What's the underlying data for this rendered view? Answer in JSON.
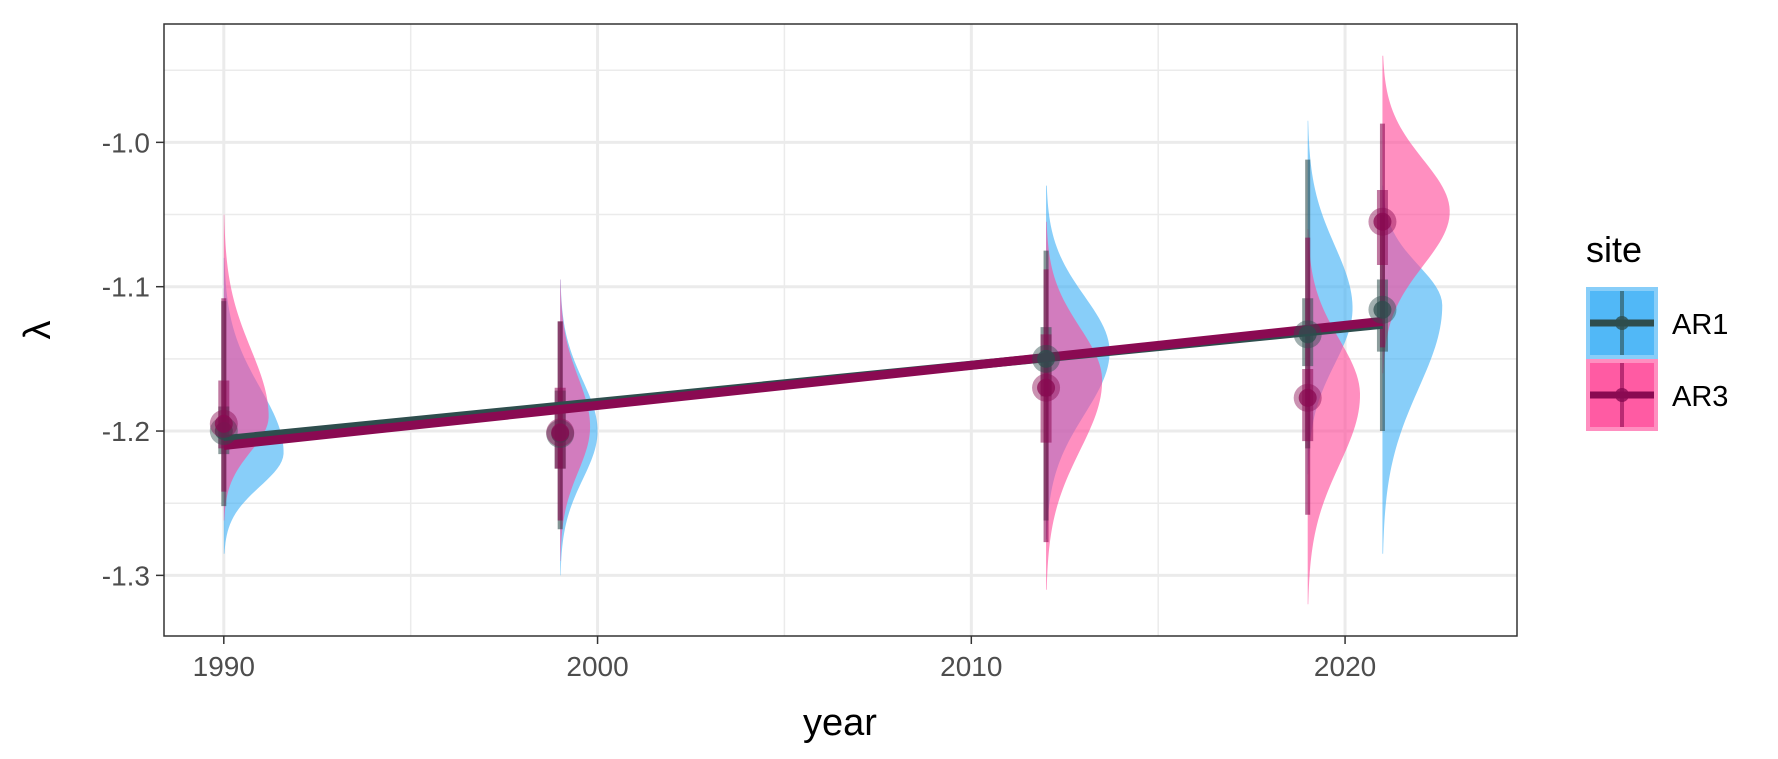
{
  "chart_data": {
    "type": "scatter",
    "title": "",
    "xlabel": "year",
    "ylabel": "λ",
    "xlim": [
      1988.4,
      2024.6
    ],
    "ylim": [
      -1.342,
      -0.918
    ],
    "x_ticks": [
      1990,
      2000,
      2010,
      2020
    ],
    "x_tick_labels": [
      "1990",
      "2000",
      "2010",
      "2020"
    ],
    "y_ticks": [
      -1.3,
      -1.2,
      -1.1,
      -1.0
    ],
    "y_tick_labels": [
      "-1.3",
      "-1.2",
      "-1.1",
      "-1.0"
    ],
    "grid": true,
    "legend": {
      "title": "site",
      "position": "right"
    },
    "series": [
      {
        "name": "AR1",
        "color": "#3fb0f5",
        "points": [
          {
            "x": 1990,
            "median": -1.2,
            "inner": [
              -1.216,
              -1.183
            ],
            "outer": [
              -1.252,
              -1.11
            ],
            "tails": [
              -1.285,
              -1.08
            ],
            "dens_peak": -1.215,
            "dens_width": 1.6
          },
          {
            "x": 1999,
            "median": -1.202,
            "inner": [
              -1.226,
              -1.172
            ],
            "outer": [
              -1.268,
              -1.124
            ],
            "tails": [
              -1.3,
              -1.095
            ],
            "dens_peak": -1.2,
            "dens_width": 1.0
          },
          {
            "x": 2012,
            "median": -1.15,
            "inner": [
              -1.176,
              -1.128
            ],
            "outer": [
              -1.262,
              -1.075
            ],
            "tails": [
              -1.275,
              -1.03
            ],
            "dens_peak": -1.145,
            "dens_width": 1.7
          },
          {
            "x": 2019,
            "median": -1.133,
            "inner": [
              -1.155,
              -1.108
            ],
            "outer": [
              -1.212,
              -1.012
            ],
            "tails": [
              -1.23,
              -0.985
            ],
            "dens_peak": -1.115,
            "dens_width": 1.2
          },
          {
            "x": 2021,
            "median": -1.116,
            "inner": [
              -1.145,
              -1.095
            ],
            "outer": [
              -1.2,
              -1.05
            ],
            "tails": [
              -1.285,
              -1.03
            ],
            "dens_peak": -1.113,
            "dens_width": 1.6
          }
        ]
      },
      {
        "name": "AR3",
        "color": "#ff4a9a",
        "points": [
          {
            "x": 1990,
            "median": -1.195,
            "inner": [
              -1.212,
              -1.165
            ],
            "outer": [
              -1.242,
              -1.108
            ],
            "tails": [
              -1.262,
              -1.05
            ],
            "dens_peak": -1.19,
            "dens_width": 1.2
          },
          {
            "x": 1999,
            "median": -1.201,
            "inner": [
              -1.226,
              -1.17
            ],
            "outer": [
              -1.262,
              -1.124
            ],
            "tails": [
              -1.29,
              -1.095
            ],
            "dens_peak": -1.197,
            "dens_width": 0.8
          },
          {
            "x": 2012,
            "median": -1.17,
            "inner": [
              -1.208,
              -1.133
            ],
            "outer": [
              -1.277,
              -1.088
            ],
            "tails": [
              -1.31,
              -1.055
            ],
            "dens_peak": -1.165,
            "dens_width": 1.5
          },
          {
            "x": 2019,
            "median": -1.177,
            "inner": [
              -1.207,
              -1.157
            ],
            "outer": [
              -1.258,
              -1.066
            ],
            "tails": [
              -1.32,
              -1.06
            ],
            "dens_peak": -1.175,
            "dens_width": 1.4
          },
          {
            "x": 2021,
            "median": -1.055,
            "inner": [
              -1.085,
              -1.033
            ],
            "outer": [
              -1.142,
              -0.987
            ],
            "tails": [
              -1.16,
              -0.94
            ],
            "dens_peak": -1.048,
            "dens_width": 1.8
          }
        ]
      }
    ],
    "trend_lines": [
      {
        "series": "AR1",
        "color": "#2e4d4d",
        "x": [
          1990,
          2021
        ],
        "y": [
          -1.206,
          -1.126
        ]
      },
      {
        "series": "AR3",
        "color": "#8a0a52",
        "x": [
          1990,
          2021
        ],
        "y": [
          -1.21,
          -1.124
        ]
      }
    ]
  }
}
